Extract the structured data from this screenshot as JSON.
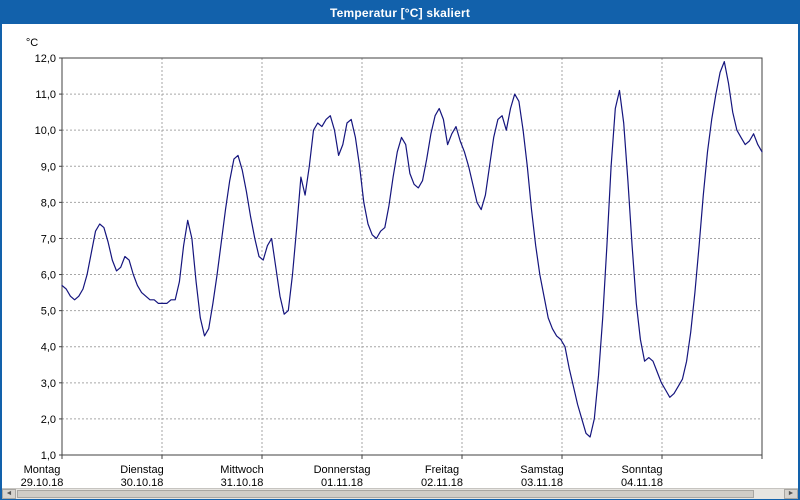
{
  "window": {
    "title": "Temperatur [°C] skaliert"
  },
  "colors": {
    "titlebar": "#1261ab",
    "window_border": "#1261ab",
    "plot_line": "#15157e",
    "grid": "#a6a6a6",
    "plot_border": "#404040",
    "plot_bg": "#ffffff",
    "label_text": "#000000"
  },
  "scrollbar": {
    "left_arrow": "◄",
    "right_arrow": "►"
  },
  "chart_data": {
    "type": "line",
    "title": "Temperatur [°C] skaliert",
    "xlabel": "",
    "ylabel": "°C",
    "grid": "dashed",
    "legend": "none",
    "y_axis": {
      "unit_label": "°C",
      "min": 1,
      "max": 12,
      "tick_step": 1,
      "tick_labels": [
        "1,0",
        "2,0",
        "3,0",
        "4,0",
        "5,0",
        "6,0",
        "7,0",
        "8,0",
        "9,0",
        "10,0",
        "11,0",
        "12,0"
      ]
    },
    "x_axis": {
      "points_per_day": 24,
      "days": [
        {
          "weekday": "Montag",
          "date": "29.10.18"
        },
        {
          "weekday": "Dienstag",
          "date": "30.10.18"
        },
        {
          "weekday": "Mittwoch",
          "date": "31.10.18"
        },
        {
          "weekday": "Donnerstag",
          "date": "01.11.18"
        },
        {
          "weekday": "Freitag",
          "date": "02.11.18"
        },
        {
          "weekday": "Samstag",
          "date": "03.11.18"
        },
        {
          "weekday": "Sonntag",
          "date": "04.11.18"
        }
      ]
    },
    "series": [
      {
        "name": "Temperatur [°C]",
        "color": "#15157e",
        "values": [
          5.7,
          5.6,
          5.4,
          5.3,
          5.4,
          5.6,
          6.0,
          6.6,
          7.2,
          7.4,
          7.3,
          6.9,
          6.4,
          6.1,
          6.2,
          6.5,
          6.4,
          6.0,
          5.7,
          5.5,
          5.4,
          5.3,
          5.3,
          5.2,
          5.2,
          5.2,
          5.3,
          5.3,
          5.8,
          6.8,
          7.5,
          7.0,
          5.8,
          4.8,
          4.3,
          4.5,
          5.2,
          6.0,
          6.9,
          7.8,
          8.6,
          9.2,
          9.3,
          8.9,
          8.3,
          7.6,
          7.0,
          6.5,
          6.4,
          6.8,
          7.0,
          6.2,
          5.4,
          4.9,
          5.0,
          6.0,
          7.3,
          8.7,
          8.2,
          9.0,
          10.0,
          10.2,
          10.1,
          10.3,
          10.4,
          10.0,
          9.3,
          9.6,
          10.2,
          10.3,
          9.8,
          9.0,
          8.0,
          7.4,
          7.1,
          7.0,
          7.2,
          7.3,
          7.9,
          8.7,
          9.4,
          9.8,
          9.6,
          8.8,
          8.5,
          8.4,
          8.6,
          9.2,
          9.9,
          10.4,
          10.6,
          10.3,
          9.6,
          9.9,
          10.1,
          9.7,
          9.4,
          9.0,
          8.5,
          8.0,
          7.8,
          8.2,
          9.0,
          9.8,
          10.3,
          10.4,
          10.0,
          10.6,
          11.0,
          10.8,
          10.0,
          9.0,
          7.8,
          6.8,
          6.0,
          5.4,
          4.8,
          4.5,
          4.3,
          4.2,
          4.0,
          3.4,
          2.9,
          2.4,
          2.0,
          1.6,
          1.5,
          2.0,
          3.2,
          4.8,
          6.8,
          9.0,
          10.6,
          11.1,
          10.2,
          8.6,
          6.8,
          5.2,
          4.2,
          3.6,
          3.7,
          3.6,
          3.3,
          3.0,
          2.8,
          2.6,
          2.7,
          2.9,
          3.1,
          3.6,
          4.4,
          5.5,
          6.8,
          8.2,
          9.4,
          10.3,
          11.0,
          11.6,
          11.9,
          11.3,
          10.5,
          10.0,
          9.8,
          9.6,
          9.7,
          9.9,
          9.6,
          9.4
        ]
      }
    ]
  }
}
